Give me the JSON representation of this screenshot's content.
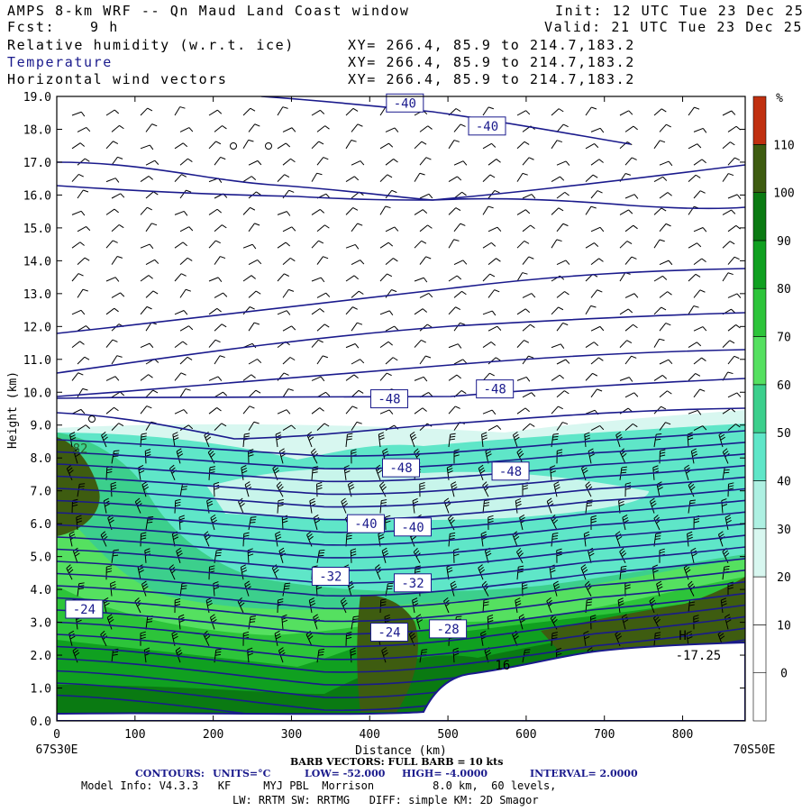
{
  "header": {
    "title": "AMPS 8-km WRF -- Qn Maud Land Coast window",
    "init": "Init: 12 UTC Tue 23 Dec 25",
    "fcst_label": "Fcst:",
    "fcst_value": "9 h",
    "valid": "Valid: 21 UTC Tue 23 Dec 25",
    "fields": [
      {
        "name": "Relative humidity (w.r.t. ice)",
        "xy": "XY= 266.4, 85.9 to 214.7,183.2"
      },
      {
        "name": "Temperature",
        "xy": "XY= 266.4, 85.9 to 214.7,183.2"
      },
      {
        "name": "Horizontal wind vectors",
        "xy": "XY= 266.4, 85.9 to 214.7,183.2"
      }
    ]
  },
  "colors": {
    "contour": "#1a1a8c",
    "terrain": "#ffffff",
    "rh_levels": [
      "#ffffff",
      "#ffffff",
      "#ffffff",
      "#d8f7f0",
      "#aef0e2",
      "#5fe6c8",
      "#3ccf8c",
      "#55e060",
      "#2dc43a",
      "#10a020",
      "#0a7a12",
      "#3e5c10",
      "#c03010"
    ]
  },
  "chart_data": {
    "type": "contour cross-section",
    "xlabel": "Distance (km)",
    "ylabel": "Height (km)",
    "xlim": [
      0,
      880
    ],
    "ylim": [
      0,
      19
    ],
    "x_ticks": [
      0,
      100,
      200,
      300,
      400,
      500,
      600,
      700,
      800
    ],
    "y_ticks": [
      "0.0",
      "1.0",
      "2.0",
      "3.0",
      "4.0",
      "5.0",
      "6.0",
      "7.0",
      "8.0",
      "9.0",
      "10.0",
      "11.0",
      "12.0",
      "13.0",
      "14.0",
      "15.0",
      "16.0",
      "17.0",
      "18.0",
      "19.0"
    ],
    "left_endpoint": "67S30E",
    "right_endpoint": "70S50E",
    "colorbar": {
      "unit": "%",
      "labels": [
        "0",
        "10",
        "20",
        "30",
        "40",
        "50",
        "60",
        "70",
        "80",
        "90",
        "100",
        "110"
      ]
    },
    "contour_labels": [
      {
        "text": "-40",
        "x": 445,
        "y": 18.8
      },
      {
        "text": "-40",
        "x": 550,
        "y": 18.1
      },
      {
        "text": "-48",
        "x": 425,
        "y": 9.8
      },
      {
        "text": "-48",
        "x": 560,
        "y": 10.1
      },
      {
        "text": "-48",
        "x": 440,
        "y": 7.7
      },
      {
        "text": "-48",
        "x": 580,
        "y": 7.6
      },
      {
        "text": "-40",
        "x": 395,
        "y": 6.0
      },
      {
        "text": "-40",
        "x": 455,
        "y": 5.9
      },
      {
        "text": "-32",
        "x": 350,
        "y": 4.4
      },
      {
        "text": "-32",
        "x": 455,
        "y": 4.2
      },
      {
        "text": "-24",
        "x": 35,
        "y": 3.4
      },
      {
        "text": "-24",
        "x": 425,
        "y": 2.7
      },
      {
        "text": "-28",
        "x": 500,
        "y": 2.8
      }
    ],
    "annotations": [
      {
        "text": "82",
        "x": 30,
        "y": 8.3
      },
      {
        "text": "H",
        "x": 800,
        "y": 2.6
      },
      {
        "text": "-17.25",
        "x": 820,
        "y": 2.0
      },
      {
        "text": "16",
        "x": 570,
        "y": 1.7
      }
    ],
    "contour_info": {
      "label": "CONTOURS:",
      "units": "UNITS=°C",
      "low": "LOW= -52.000",
      "high": "HIGH= -4.0000",
      "interval": "INTERVAL= 2.0000"
    },
    "barb_note": "BARB VECTORS: FULL BARB = 10 kts"
  },
  "footer": {
    "model_info": "Model Info: V4.3.3   KF     MYJ PBL  Morrison         8.0 km,  60 levels,",
    "physics": "LW: RRTM SW: RRTMG   DIFF: simple KM: 2D Smagor"
  }
}
